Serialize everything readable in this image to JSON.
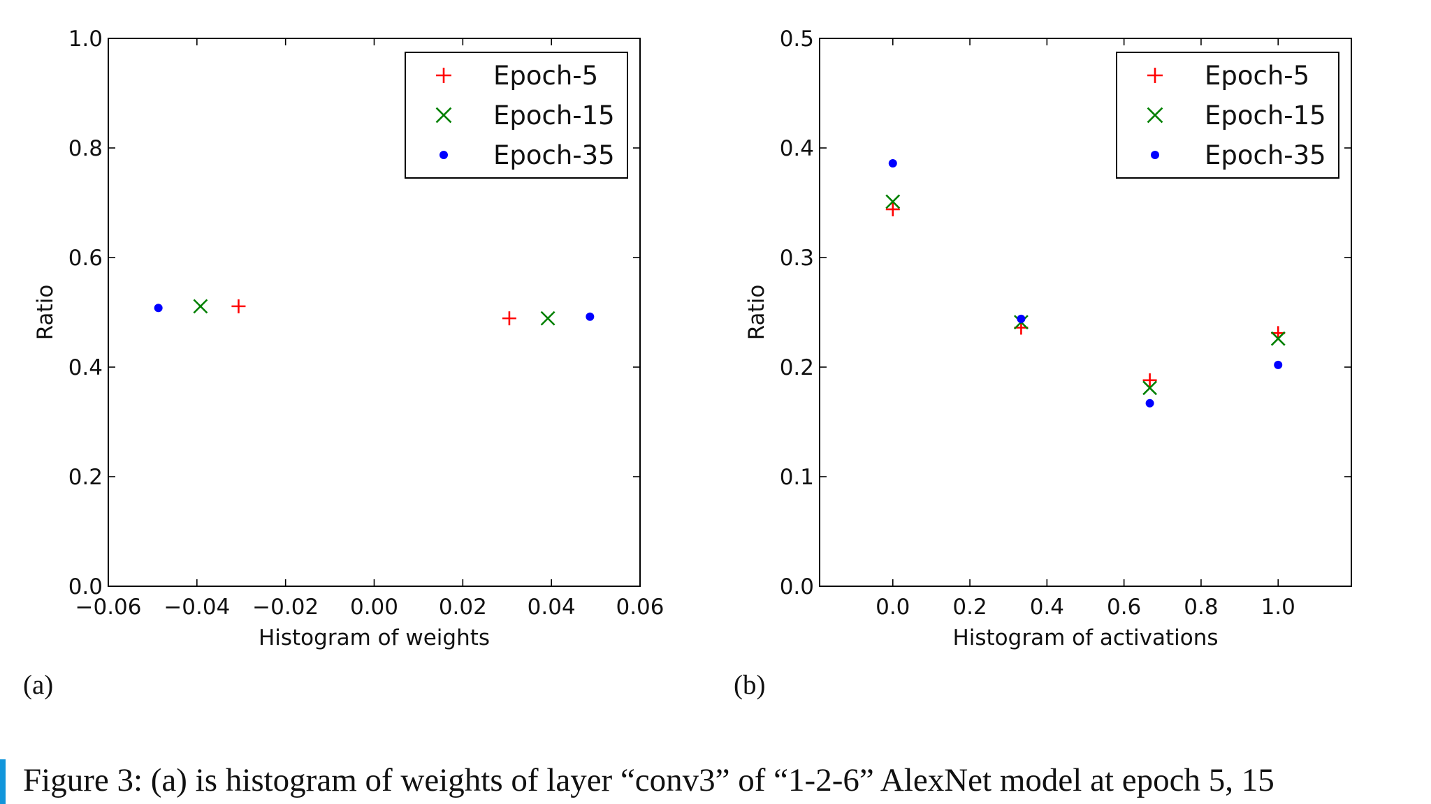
{
  "figure": {
    "panel_labels": [
      "(a)",
      "(b)"
    ],
    "caption": "Figure 3:  (a) is histogram of weights of layer “conv3” of “1-2-6” AlexNet model at epoch 5, 15"
  },
  "colors": {
    "epoch5": "#ff0000",
    "epoch15": "#008000",
    "epoch35": "#0000ff",
    "axis": "#000000",
    "caption_bar": "#1296db"
  },
  "chart_data": [
    {
      "type": "scatter",
      "panel": "(a)",
      "title": "",
      "xlabel": "Histogram of weights",
      "ylabel": "Ratio",
      "xlim": [
        -0.06,
        0.06
      ],
      "ylim": [
        0.0,
        1.0
      ],
      "xticks": [
        -0.06,
        -0.04,
        -0.02,
        0.0,
        0.02,
        0.04,
        0.06
      ],
      "xtick_labels": [
        "−0.06",
        "−0.04",
        "−0.02",
        "0.00",
        "0.02",
        "0.04",
        "0.06"
      ],
      "yticks": [
        0.0,
        0.2,
        0.4,
        0.6,
        0.8,
        1.0
      ],
      "ytick_labels": [
        "0.0",
        "0.2",
        "0.4",
        "0.6",
        "0.8",
        "1.0"
      ],
      "grid": false,
      "legend_position": "top-right",
      "series": [
        {
          "name": "Epoch-5",
          "marker": "plus",
          "x": [
            -0.0306,
            0.0305
          ],
          "y": [
            0.511,
            0.489
          ]
        },
        {
          "name": "Epoch-15",
          "marker": "cross",
          "x": [
            -0.0392,
            0.0392
          ],
          "y": [
            0.511,
            0.489
          ]
        },
        {
          "name": "Epoch-35",
          "marker": "dot",
          "x": [
            -0.0487,
            0.0487
          ],
          "y": [
            0.508,
            0.492
          ]
        }
      ]
    },
    {
      "type": "scatter",
      "panel": "(b)",
      "title": "",
      "xlabel": "Histogram of activations",
      "ylabel": "Ratio",
      "xlim": [
        -0.19,
        1.19
      ],
      "ylim": [
        0.0,
        0.5
      ],
      "xticks": [
        0.0,
        0.2,
        0.4,
        0.6,
        0.8,
        1.0
      ],
      "xtick_labels": [
        "0.0",
        "0.2",
        "0.4",
        "0.6",
        "0.8",
        "1.0"
      ],
      "yticks": [
        0.0,
        0.1,
        0.2,
        0.3,
        0.4,
        0.5
      ],
      "ytick_labels": [
        "0.0",
        "0.1",
        "0.2",
        "0.3",
        "0.4",
        "0.5"
      ],
      "grid": false,
      "legend_position": "top-right",
      "series": [
        {
          "name": "Epoch-5",
          "marker": "plus",
          "x": [
            0.0,
            0.333,
            0.667,
            1.0
          ],
          "y": [
            0.344,
            0.236,
            0.188,
            0.231
          ]
        },
        {
          "name": "Epoch-15",
          "marker": "cross",
          "x": [
            0.0,
            0.333,
            0.667,
            1.0
          ],
          "y": [
            0.351,
            0.241,
            0.181,
            0.226
          ]
        },
        {
          "name": "Epoch-35",
          "marker": "dot",
          "x": [
            0.0,
            0.333,
            0.667,
            1.0
          ],
          "y": [
            0.386,
            0.244,
            0.167,
            0.202
          ]
        }
      ]
    }
  ]
}
